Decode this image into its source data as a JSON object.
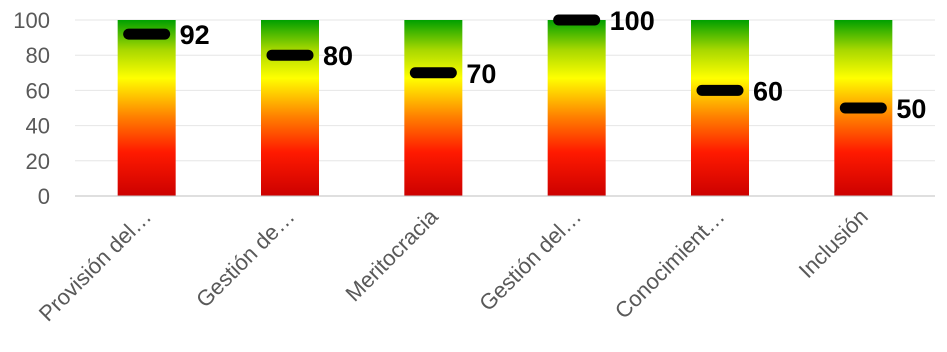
{
  "chart_data": {
    "type": "bar",
    "title": "",
    "xlabel": "",
    "ylabel": "",
    "ylim": [
      0,
      100
    ],
    "yticks": [
      0,
      20,
      40,
      60,
      80,
      100
    ],
    "grid": true,
    "legend": "none",
    "categories": [
      "Provisión del…",
      "Gestión de…",
      "Meritocracia",
      "Gestión del…",
      "Conocimient…",
      "Inclusión"
    ],
    "bar_values": [
      100,
      100,
      100,
      100,
      100,
      100
    ],
    "marker_values": [
      92,
      80,
      70,
      100,
      60,
      50
    ],
    "data_labels": [
      "92",
      "80",
      "70",
      "100",
      "60",
      "50"
    ],
    "colors": {
      "gradient_top": "#00a000",
      "gradient_upper": "#a8d800",
      "gradient_middle": "#ffff00",
      "gradient_lower": "#ff8000",
      "gradient_low": "#ff1a00",
      "gradient_bottom": "#cc0000",
      "marker": "#000000",
      "text": "#595959"
    }
  }
}
